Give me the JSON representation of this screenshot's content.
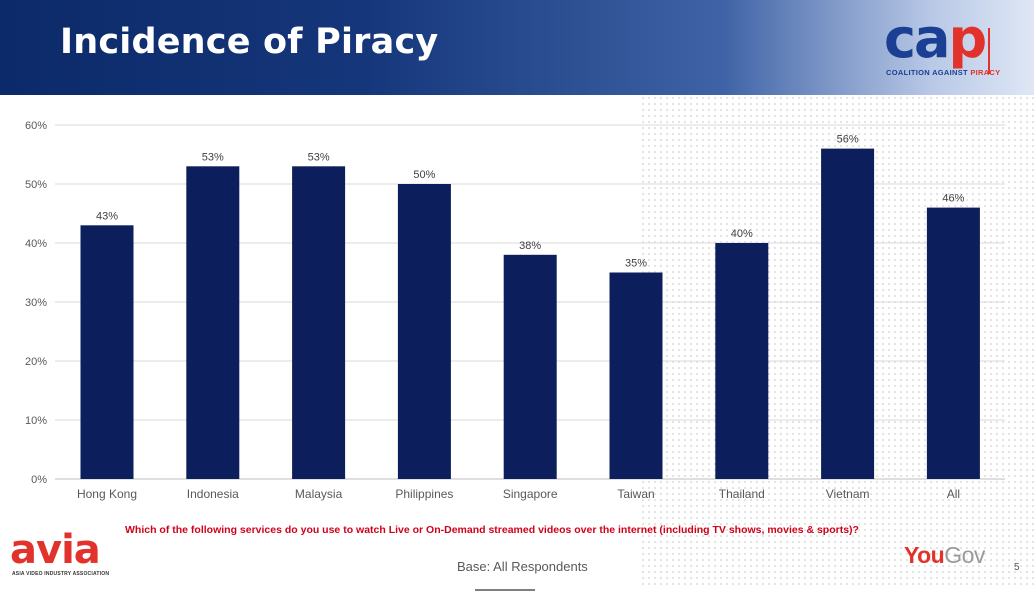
{
  "header": {
    "title": "Incidence of Piracy",
    "logo": {
      "letters_a": "ca",
      "letters_b": "p",
      "tagline_a": "COALITION",
      "tagline_b": "AGAINST",
      "tagline_c": "PIRACY"
    }
  },
  "colors": {
    "bar": "#0c1e5b",
    "header": "#0c2a69",
    "accent_red": "#e1322c",
    "question_red": "#d0021b",
    "grid": "#d9d9d9"
  },
  "chart_data": {
    "type": "bar",
    "categories": [
      "Hong Kong",
      "Indonesia",
      "Malaysia",
      "Philippines",
      "Singapore",
      "Taiwan",
      "Thailand",
      "Vietnam",
      "All"
    ],
    "values": [
      43,
      53,
      53,
      50,
      38,
      35,
      40,
      56,
      46
    ],
    "data_labels": [
      "43%",
      "53%",
      "53%",
      "50%",
      "38%",
      "35%",
      "40%",
      "56%",
      "46%"
    ],
    "y_ticks": [
      "0%",
      "10%",
      "20%",
      "30%",
      "40%",
      "50%",
      "60%"
    ],
    "ylim": [
      0,
      60
    ],
    "grid": true,
    "legend": "none"
  },
  "footer": {
    "question": "Which of the following services do you use to watch Live or On-Demand streamed videos over the internet (including TV shows, movies & sports)?",
    "base": "Base: All Respondents",
    "page_number": "5",
    "avia_logo": "avia",
    "avia_subtitle": "ASIA VIDEO INDUSTRY ASSOCIATION",
    "yougov_a": "You",
    "yougov_b": "Gov"
  }
}
